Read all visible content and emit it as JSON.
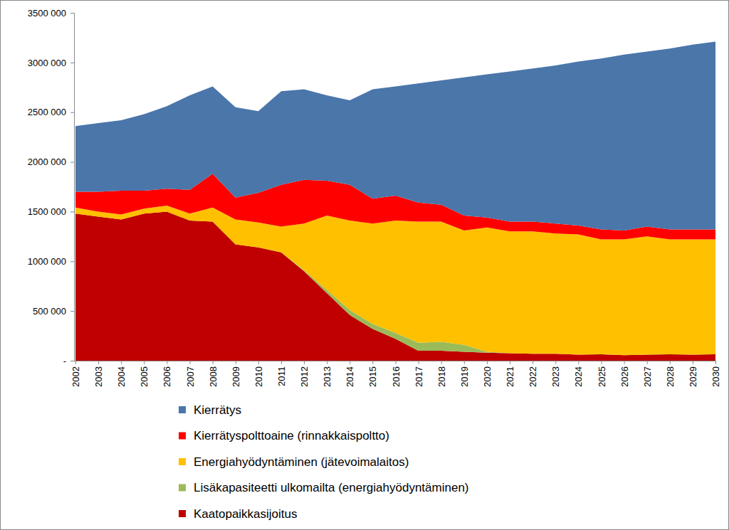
{
  "chart_data": {
    "type": "area",
    "stacked": true,
    "categories": [
      "2002",
      "2003",
      "2004",
      "2005",
      "2006",
      "2007",
      "2008",
      "2009",
      "2010",
      "2011",
      "2012",
      "2013",
      "2014",
      "2015",
      "2016",
      "2017",
      "2018",
      "2019",
      "2020",
      "2021",
      "2022",
      "2023",
      "2024",
      "2025",
      "2026",
      "2027",
      "2028",
      "2029",
      "2030"
    ],
    "series": [
      {
        "name": "Kierrätys",
        "color": "#4a76aa",
        "values": [
          660000,
          690000,
          710000,
          770000,
          830000,
          950000,
          880000,
          910000,
          820000,
          940000,
          910000,
          860000,
          850000,
          1100000,
          1100000,
          1200000,
          1250000,
          1390000,
          1440000,
          1510000,
          1540000,
          1590000,
          1650000,
          1720000,
          1770000,
          1760000,
          1820000,
          1860000,
          1890000
        ]
      },
      {
        "name": "Kierrätyspolttoaine (rinnakkaispoltto)",
        "color": "#ff0000",
        "values": [
          160000,
          200000,
          240000,
          180000,
          170000,
          240000,
          340000,
          220000,
          300000,
          420000,
          440000,
          350000,
          360000,
          250000,
          250000,
          190000,
          170000,
          150000,
          100000,
          100000,
          100000,
          100000,
          90000,
          100000,
          90000,
          100000,
          100000,
          100000,
          100000
        ]
      },
      {
        "name": "Energiahyödyntäminen (jätevoimalaitos)",
        "color": "#ffc000",
        "values": [
          60000,
          50000,
          50000,
          50000,
          60000,
          70000,
          140000,
          250000,
          250000,
          260000,
          470000,
          750000,
          900000,
          1010000,
          1130000,
          1220000,
          1210000,
          1150000,
          1250000,
          1225000,
          1230000,
          1210000,
          1210000,
          1155000,
          1165000,
          1190000,
          1155000,
          1160000,
          1155000
        ]
      },
      {
        "name": "Lisäkapasiteetti ulkomailta (energiahyödyntäminen)",
        "color": "#9bbb59",
        "values": [
          0,
          0,
          0,
          0,
          0,
          0,
          0,
          0,
          0,
          0,
          10000,
          30000,
          50000,
          50000,
          60000,
          80000,
          90000,
          70000,
          10000,
          0,
          0,
          0,
          0,
          0,
          0,
          0,
          0,
          0,
          0
        ]
      },
      {
        "name": "Kaatopaikkasijoitus",
        "color": "#c00000",
        "values": [
          1480000,
          1450000,
          1420000,
          1480000,
          1500000,
          1410000,
          1400000,
          1170000,
          1140000,
          1090000,
          900000,
          680000,
          460000,
          320000,
          220000,
          100000,
          100000,
          90000,
          80000,
          75000,
          70000,
          70000,
          60000,
          65000,
          55000,
          60000,
          65000,
          60000,
          65000
        ]
      }
    ],
    "ylim": [
      0,
      3500000
    ],
    "yticks": [
      {
        "value": 0,
        "label": "-"
      },
      {
        "value": 500000,
        "label": "500 000"
      },
      {
        "value": 1000000,
        "label": "1000 000"
      },
      {
        "value": 1500000,
        "label": "1500 000"
      },
      {
        "value": 2000000,
        "label": "2000 000"
      },
      {
        "value": 2500000,
        "label": "2500 000"
      },
      {
        "value": 3000000,
        "label": "3000 000"
      },
      {
        "value": 3500000,
        "label": "3500 000"
      }
    ],
    "grid": false,
    "legend": "bottom"
  }
}
